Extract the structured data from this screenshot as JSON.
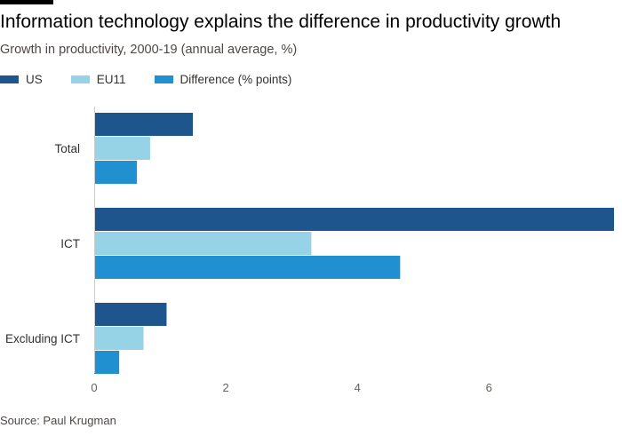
{
  "header": {
    "title": "Information technology explains the difference in productivity growth",
    "subtitle": "Growth in productivity, 2000-19 (annual average, %)"
  },
  "source": "Source: Paul Krugman",
  "colors": {
    "us": "#1e558c",
    "eu11": "#96d3e6",
    "difference": "#2090d0",
    "top_bar": "#000000"
  },
  "chart_data": {
    "type": "bar",
    "orientation": "horizontal",
    "categories": [
      "Total",
      "ICT",
      "Excluding ICT"
    ],
    "series": [
      {
        "name": "US",
        "values": [
          1.5,
          7.9,
          1.1
        ]
      },
      {
        "name": "EU11",
        "values": [
          0.85,
          3.3,
          0.75
        ]
      },
      {
        "name": "Difference (% points)",
        "values": [
          0.65,
          4.65,
          0.38
        ]
      }
    ],
    "xlim": [
      0,
      7.9
    ],
    "xticks": [
      0,
      2,
      4,
      6
    ],
    "legend_position": "top-left",
    "grid": false
  }
}
